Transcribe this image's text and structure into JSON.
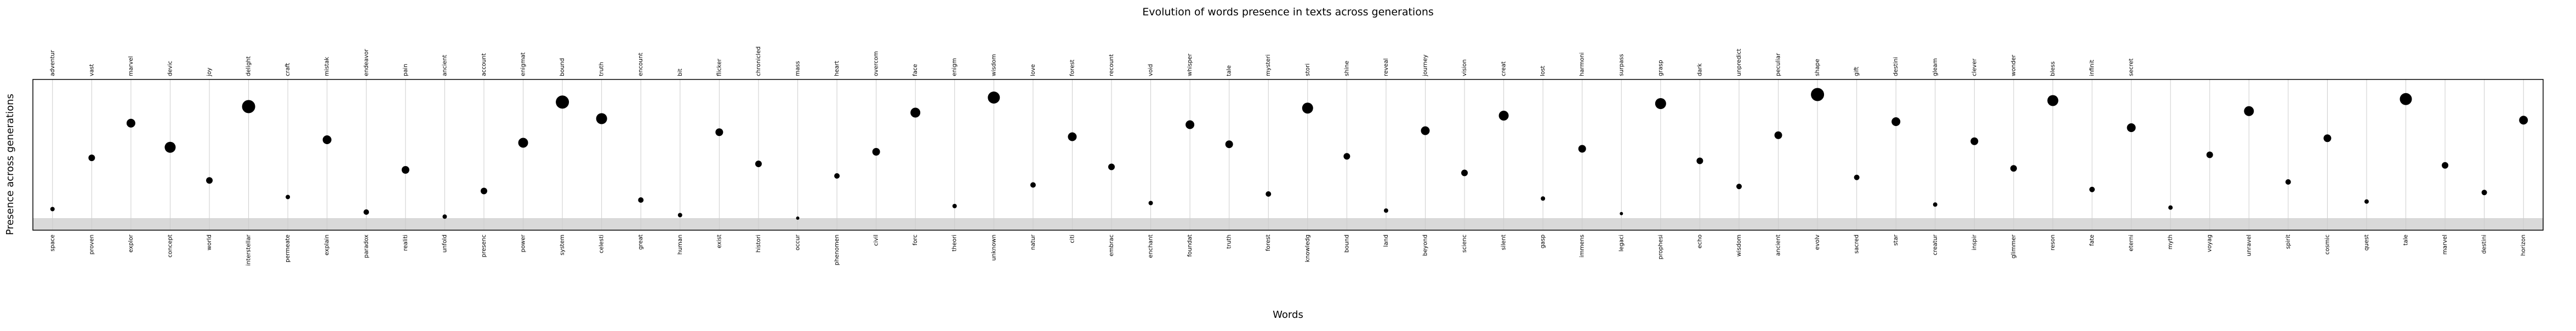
{
  "chart_data": {
    "type": "scatter",
    "title": "Evolution of words presence in texts across generations",
    "xlabel": "Words",
    "ylabel": "Presence across generations",
    "ylim": [
      0,
      100
    ],
    "grid": true,
    "legend": "none",
    "colors": {
      "points": "#000000",
      "band": "#d9d9d9",
      "grid": "#cccccc",
      "frame": "#000000"
    },
    "top_labels": [
      "adventur",
      "vast",
      "marvel",
      "devic",
      "joy",
      "delight",
      "craft",
      "mistak",
      "endeavor",
      "pain",
      "ancient",
      "account",
      "enigmat",
      "bound",
      "truth",
      "encount",
      "bit",
      "flicker",
      "chronicled",
      "mass",
      "heart",
      "overcom",
      "face",
      "enigm",
      "wisdom",
      "love",
      "forest",
      "recount",
      "void",
      "whisper",
      "tale",
      "mysteri",
      "stori",
      "shine",
      "reveal",
      "journey",
      "vision",
      "creat",
      "lost",
      "harmoni",
      "surpass",
      "grasp",
      "dark",
      "unpredict",
      "peculiar",
      "shape",
      "gift",
      "destini",
      "gleam",
      "clever",
      "wonder",
      "bless",
      "infinit",
      "secret"
    ],
    "bottom_labels": [
      "space",
      "proven",
      "explor",
      "concept",
      "world",
      "interstellar",
      "permeate",
      "explain",
      "paradox",
      "realiti",
      "unfold",
      "presenc",
      "power",
      "system",
      "celesti",
      "great",
      "human",
      "exist",
      "histori",
      "occur",
      "phenomen",
      "civil",
      "forc",
      "theori",
      "unknown",
      "natur",
      "citi",
      "embrac",
      "enchant",
      "foundat",
      "truth",
      "forest",
      "knowledg",
      "bound",
      "land",
      "beyond",
      "scienc",
      "silent",
      "gasp",
      "immens",
      "legaci",
      "prophesi",
      "echo",
      "wisdom",
      "ancient",
      "evolv",
      "sacred",
      "star",
      "creatur",
      "inspir",
      "glimmer",
      "reson",
      "fate",
      "eterni",
      "myth",
      "voyag",
      "unravel",
      "spirit",
      "cosmic",
      "quest",
      "tale",
      "marvel",
      "destini",
      "horizon"
    ],
    "series": [
      {
        "values": [
          {
            "x": 1,
            "y": 14,
            "size": 4
          },
          {
            "x": 2,
            "y": 48,
            "size": 6
          },
          {
            "x": 3,
            "y": 71,
            "size": 8
          },
          {
            "x": 4,
            "y": 55,
            "size": 10
          },
          {
            "x": 5,
            "y": 33,
            "size": 6
          },
          {
            "x": 6,
            "y": 82,
            "size": 12
          },
          {
            "x": 7,
            "y": 22,
            "size": 4
          },
          {
            "x": 8,
            "y": 60,
            "size": 8
          },
          {
            "x": 9,
            "y": 12,
            "size": 5
          },
          {
            "x": 10,
            "y": 40,
            "size": 7
          },
          {
            "x": 11,
            "y": 9,
            "size": 4
          },
          {
            "x": 12,
            "y": 26,
            "size": 6
          },
          {
            "x": 13,
            "y": 58,
            "size": 9
          },
          {
            "x": 14,
            "y": 85,
            "size": 12
          },
          {
            "x": 15,
            "y": 74,
            "size": 10
          },
          {
            "x": 16,
            "y": 20,
            "size": 5
          },
          {
            "x": 17,
            "y": 10,
            "size": 4
          },
          {
            "x": 18,
            "y": 65,
            "size": 7
          },
          {
            "x": 19,
            "y": 44,
            "size": 6
          },
          {
            "x": 20,
            "y": 8,
            "size": 3
          },
          {
            "x": 21,
            "y": 36,
            "size": 5
          },
          {
            "x": 22,
            "y": 52,
            "size": 7
          },
          {
            "x": 23,
            "y": 78,
            "size": 9
          },
          {
            "x": 24,
            "y": 16,
            "size": 4
          },
          {
            "x": 25,
            "y": 88,
            "size": 11
          },
          {
            "x": 26,
            "y": 30,
            "size": 5
          },
          {
            "x": 27,
            "y": 62,
            "size": 8
          },
          {
            "x": 28,
            "y": 42,
            "size": 6
          },
          {
            "x": 29,
            "y": 18,
            "size": 4
          },
          {
            "x": 30,
            "y": 70,
            "size": 8
          },
          {
            "x": 31,
            "y": 57,
            "size": 7
          },
          {
            "x": 32,
            "y": 24,
            "size": 5
          },
          {
            "x": 33,
            "y": 81,
            "size": 10
          },
          {
            "x": 34,
            "y": 49,
            "size": 6
          },
          {
            "x": 35,
            "y": 13,
            "size": 4
          },
          {
            "x": 36,
            "y": 66,
            "size": 8
          },
          {
            "x": 37,
            "y": 38,
            "size": 6
          },
          {
            "x": 38,
            "y": 76,
            "size": 9
          },
          {
            "x": 39,
            "y": 21,
            "size": 4
          },
          {
            "x": 40,
            "y": 54,
            "size": 7
          },
          {
            "x": 41,
            "y": 11,
            "size": 3
          },
          {
            "x": 42,
            "y": 84,
            "size": 10
          },
          {
            "x": 43,
            "y": 46,
            "size": 6
          },
          {
            "x": 44,
            "y": 29,
            "size": 5
          },
          {
            "x": 45,
            "y": 63,
            "size": 7
          },
          {
            "x": 46,
            "y": 90,
            "size": 12
          },
          {
            "x": 47,
            "y": 35,
            "size": 5
          },
          {
            "x": 48,
            "y": 72,
            "size": 8
          },
          {
            "x": 49,
            "y": 17,
            "size": 4
          },
          {
            "x": 50,
            "y": 59,
            "size": 7
          },
          {
            "x": 51,
            "y": 41,
            "size": 6
          },
          {
            "x": 52,
            "y": 86,
            "size": 10
          },
          {
            "x": 53,
            "y": 27,
            "size": 5
          },
          {
            "x": 54,
            "y": 68,
            "size": 8
          },
          {
            "x": 55,
            "y": 15,
            "size": 4
          },
          {
            "x": 56,
            "y": 50,
            "size": 6
          },
          {
            "x": 57,
            "y": 79,
            "size": 9
          },
          {
            "x": 58,
            "y": 32,
            "size": 5
          },
          {
            "x": 59,
            "y": 61,
            "size": 7
          },
          {
            "x": 60,
            "y": 19,
            "size": 4
          },
          {
            "x": 61,
            "y": 87,
            "size": 11
          },
          {
            "x": 62,
            "y": 43,
            "size": 6
          },
          {
            "x": 63,
            "y": 25,
            "size": 5
          },
          {
            "x": 64,
            "y": 73,
            "size": 8
          }
        ]
      }
    ]
  }
}
